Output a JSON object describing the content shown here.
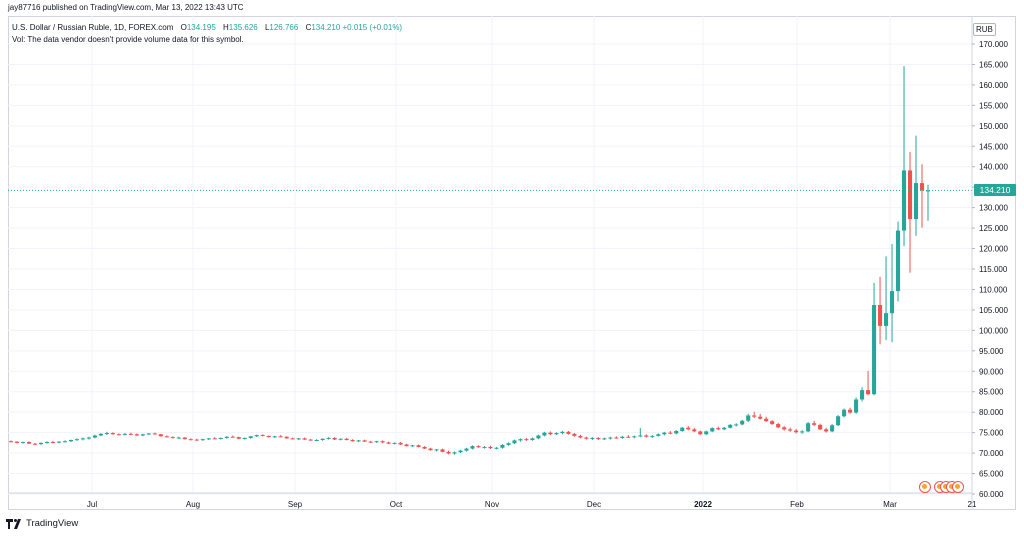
{
  "publish_line": "jay87716 published on TradingView.com, Mar 13, 2022 13:43 UTC",
  "symbol": {
    "name": "U.S. Dollar / Russian Ruble, 1D, FOREX.com",
    "o_label": "O",
    "o_value": "134.195",
    "h_label": "H",
    "h_value": "135.626",
    "l_label": "L",
    "l_value": "126.766",
    "c_label": "C",
    "c_value": "134.210",
    "change": "+0.015 (+0.01%)"
  },
  "vol_line": "Vol: The data vendor doesn't provide volume data for this symbol.",
  "currency": "RUB",
  "last_price_label": "134.210",
  "logo_text": "TradingView",
  "colors": {
    "up": "#26a69a",
    "down": "#ef5350",
    "grid": "#f0f3fa",
    "price_line": "#26a69a"
  },
  "chart_data": {
    "type": "candlestick",
    "ylim": [
      60,
      172
    ],
    "y_ticks": [
      "60.000",
      "65.000",
      "70.000",
      "75.000",
      "80.000",
      "85.000",
      "90.000",
      "95.000",
      "100.000",
      "105.000",
      "110.000",
      "115.000",
      "120.000",
      "125.000",
      "130.000",
      "135.000",
      "140.000",
      "145.000",
      "150.000",
      "155.000",
      "160.000",
      "165.000",
      "170.000"
    ],
    "x_ticks": [
      "Jul",
      "Aug",
      "Sep",
      "Oct",
      "Nov",
      "Dec",
      "2022",
      "Feb",
      "Mar",
      "21"
    ],
    "last_price": 134.21,
    "candles": [
      [
        72.9,
        73.1,
        72.6,
        72.8
      ],
      [
        72.8,
        72.9,
        72.4,
        72.5
      ],
      [
        72.5,
        72.8,
        72.3,
        72.7
      ],
      [
        72.7,
        72.9,
        72.2,
        72.3
      ],
      [
        72.3,
        72.5,
        72.0,
        72.2
      ],
      [
        72.2,
        72.6,
        72.0,
        72.5
      ],
      [
        72.5,
        72.9,
        72.3,
        72.7
      ],
      [
        72.7,
        73.0,
        72.4,
        72.6
      ],
      [
        72.6,
        72.9,
        72.4,
        72.8
      ],
      [
        72.8,
        73.1,
        72.6,
        72.9
      ],
      [
        72.9,
        73.3,
        72.7,
        73.2
      ],
      [
        73.2,
        73.6,
        73.0,
        73.4
      ],
      [
        73.4,
        73.8,
        73.1,
        73.6
      ],
      [
        73.6,
        74.0,
        73.3,
        73.8
      ],
      [
        73.8,
        74.5,
        73.6,
        74.3
      ],
      [
        74.3,
        74.9,
        74.1,
        74.7
      ],
      [
        74.7,
        75.2,
        74.4,
        74.9
      ],
      [
        74.9,
        75.1,
        74.5,
        74.6
      ],
      [
        74.6,
        74.8,
        74.3,
        74.5
      ],
      [
        74.5,
        74.9,
        74.3,
        74.7
      ],
      [
        74.7,
        75.0,
        74.4,
        74.6
      ],
      [
        74.6,
        74.8,
        74.2,
        74.3
      ],
      [
        74.3,
        74.7,
        74.1,
        74.6
      ],
      [
        74.6,
        74.9,
        74.4,
        74.8
      ],
      [
        74.8,
        75.0,
        74.5,
        74.6
      ],
      [
        74.6,
        74.7,
        74.0,
        74.1
      ],
      [
        74.1,
        74.3,
        73.8,
        73.9
      ],
      [
        73.9,
        74.1,
        73.6,
        73.7
      ],
      [
        73.7,
        74.0,
        73.5,
        73.8
      ],
      [
        73.8,
        73.9,
        73.3,
        73.4
      ],
      [
        73.4,
        73.6,
        73.1,
        73.3
      ],
      [
        73.3,
        73.5,
        73.0,
        73.2
      ],
      [
        73.2,
        73.5,
        73.0,
        73.4
      ],
      [
        73.4,
        73.7,
        73.2,
        73.6
      ],
      [
        73.6,
        73.9,
        73.4,
        73.5
      ],
      [
        73.5,
        73.8,
        73.3,
        73.7
      ],
      [
        73.7,
        74.1,
        73.5,
        74.0
      ],
      [
        74.0,
        74.3,
        73.8,
        73.9
      ],
      [
        73.9,
        74.0,
        73.4,
        73.5
      ],
      [
        73.5,
        73.8,
        73.3,
        73.7
      ],
      [
        73.7,
        74.2,
        73.5,
        74.1
      ],
      [
        74.1,
        74.5,
        73.9,
        74.4
      ],
      [
        74.4,
        74.6,
        74.1,
        74.2
      ],
      [
        74.2,
        74.3,
        73.8,
        73.9
      ],
      [
        73.9,
        74.2,
        73.7,
        74.1
      ],
      [
        74.1,
        74.4,
        73.9,
        74.0
      ],
      [
        74.0,
        74.1,
        73.5,
        73.6
      ],
      [
        73.6,
        73.8,
        73.3,
        73.4
      ],
      [
        73.4,
        73.7,
        73.2,
        73.6
      ],
      [
        73.6,
        73.8,
        73.2,
        73.3
      ],
      [
        73.3,
        73.5,
        73.0,
        73.1
      ],
      [
        73.1,
        73.4,
        72.9,
        73.2
      ],
      [
        73.2,
        73.6,
        73.0,
        73.5
      ],
      [
        73.5,
        73.9,
        73.3,
        73.7
      ],
      [
        73.7,
        73.9,
        73.2,
        73.3
      ],
      [
        73.3,
        73.6,
        73.1,
        73.5
      ],
      [
        73.5,
        73.7,
        73.1,
        73.2
      ],
      [
        73.2,
        73.4,
        72.8,
        72.9
      ],
      [
        72.9,
        73.2,
        72.7,
        73.1
      ],
      [
        73.1,
        73.3,
        72.7,
        72.8
      ],
      [
        72.8,
        73.0,
        72.5,
        72.7
      ],
      [
        72.7,
        73.0,
        72.5,
        72.9
      ],
      [
        72.9,
        73.1,
        72.4,
        72.6
      ],
      [
        72.6,
        72.8,
        72.2,
        72.3
      ],
      [
        72.3,
        72.6,
        72.1,
        72.5
      ],
      [
        72.5,
        72.7,
        72.0,
        72.1
      ],
      [
        72.1,
        72.3,
        71.6,
        71.7
      ],
      [
        71.7,
        72.0,
        71.5,
        71.9
      ],
      [
        71.9,
        72.1,
        71.4,
        71.5
      ],
      [
        71.5,
        71.7,
        71.0,
        71.1
      ],
      [
        71.1,
        71.3,
        70.6,
        70.7
      ],
      [
        70.7,
        71.0,
        70.4,
        70.9
      ],
      [
        70.9,
        71.1,
        70.2,
        70.3
      ],
      [
        70.3,
        70.6,
        69.7,
        69.9
      ],
      [
        69.9,
        70.4,
        69.6,
        70.2
      ],
      [
        70.2,
        70.8,
        70.0,
        70.6
      ],
      [
        70.6,
        71.3,
        70.4,
        71.1
      ],
      [
        71.1,
        71.9,
        70.9,
        71.7
      ],
      [
        71.7,
        71.9,
        71.3,
        71.4
      ],
      [
        71.4,
        71.7,
        71.1,
        71.5
      ],
      [
        71.5,
        71.8,
        71.0,
        71.2
      ],
      [
        71.2,
        71.5,
        70.9,
        71.3
      ],
      [
        71.3,
        72.2,
        71.1,
        72.0
      ],
      [
        72.0,
        72.6,
        71.8,
        72.4
      ],
      [
        72.4,
        73.3,
        72.2,
        73.1
      ],
      [
        73.1,
        73.6,
        72.8,
        73.4
      ],
      [
        73.4,
        73.7,
        73.0,
        73.2
      ],
      [
        73.2,
        73.8,
        73.0,
        73.6
      ],
      [
        73.6,
        74.5,
        73.4,
        74.3
      ],
      [
        74.3,
        75.2,
        74.1,
        75.0
      ],
      [
        75.0,
        75.3,
        74.4,
        74.6
      ],
      [
        74.6,
        75.1,
        74.4,
        74.9
      ],
      [
        74.9,
        75.4,
        74.6,
        75.2
      ],
      [
        75.2,
        75.4,
        74.5,
        74.7
      ],
      [
        74.7,
        74.9,
        74.0,
        74.2
      ],
      [
        74.2,
        74.5,
        73.6,
        73.8
      ],
      [
        73.8,
        74.0,
        73.3,
        73.5
      ],
      [
        73.5,
        73.9,
        73.2,
        73.7
      ],
      [
        73.7,
        73.9,
        73.2,
        73.4
      ],
      [
        73.4,
        73.8,
        73.2,
        73.6
      ],
      [
        73.6,
        74.0,
        73.3,
        73.8
      ],
      [
        73.8,
        74.1,
        73.5,
        73.7
      ],
      [
        73.7,
        74.2,
        73.5,
        74.0
      ],
      [
        74.0,
        74.4,
        73.7,
        73.9
      ],
      [
        73.9,
        74.3,
        73.6,
        74.1
      ],
      [
        74.1,
        76.1,
        73.9,
        74.3
      ],
      [
        74.3,
        74.6,
        73.8,
        74.0
      ],
      [
        74.0,
        74.4,
        73.7,
        74.2
      ],
      [
        74.2,
        74.8,
        74.0,
        74.6
      ],
      [
        74.6,
        75.2,
        74.3,
        75.0
      ],
      [
        75.0,
        75.4,
        74.6,
        74.8
      ],
      [
        74.8,
        75.6,
        74.6,
        75.4
      ],
      [
        75.4,
        76.4,
        75.2,
        76.2
      ],
      [
        76.2,
        76.6,
        75.6,
        75.8
      ],
      [
        75.8,
        76.2,
        75.1,
        75.3
      ],
      [
        75.3,
        75.5,
        74.4,
        74.6
      ],
      [
        74.6,
        75.5,
        74.4,
        75.3
      ],
      [
        75.3,
        76.3,
        75.1,
        76.1
      ],
      [
        76.1,
        76.5,
        75.6,
        75.8
      ],
      [
        75.8,
        76.4,
        75.6,
        76.2
      ],
      [
        76.2,
        77.1,
        76.0,
        76.9
      ],
      [
        76.9,
        77.3,
        76.5,
        77.0
      ],
      [
        77.0,
        78.1,
        76.8,
        77.9
      ],
      [
        77.9,
        79.6,
        77.6,
        79.2
      ],
      [
        79.2,
        80.1,
        78.6,
        78.9
      ],
      [
        78.9,
        79.6,
        78.2,
        78.4
      ],
      [
        78.4,
        78.9,
        77.6,
        77.8
      ],
      [
        77.8,
        78.1,
        76.9,
        77.1
      ],
      [
        77.1,
        77.4,
        76.1,
        76.3
      ],
      [
        76.3,
        76.6,
        75.5,
        75.8
      ],
      [
        75.8,
        76.2,
        75.2,
        75.5
      ],
      [
        75.5,
        75.9,
        74.8,
        75.1
      ],
      [
        75.1,
        75.6,
        74.7,
        75.3
      ],
      [
        75.3,
        77.6,
        75.1,
        77.3
      ],
      [
        77.3,
        77.9,
        76.6,
        76.9
      ],
      [
        76.9,
        77.2,
        75.6,
        75.8
      ],
      [
        75.8,
        76.2,
        75.0,
        75.3
      ],
      [
        75.3,
        77.1,
        75.1,
        76.8
      ],
      [
        76.8,
        79.3,
        76.6,
        79.0
      ],
      [
        79.0,
        80.9,
        78.7,
        80.6
      ],
      [
        80.6,
        81.1,
        79.6,
        79.9
      ],
      [
        79.9,
        83.6,
        79.6,
        83.1
      ],
      [
        83.1,
        86.1,
        82.6,
        85.4
      ],
      [
        85.4,
        90.1,
        84.1,
        84.4
      ],
      [
        84.4,
        111.6,
        84.1,
        106.2
      ],
      [
        106.2,
        113.1,
        96.6,
        101.1
      ],
      [
        101.1,
        118.1,
        97.6,
        104.2
      ],
      [
        104.2,
        121.1,
        97.1,
        109.6
      ],
      [
        109.6,
        126.6,
        107.1,
        124.4
      ],
      [
        124.4,
        164.6,
        120.6,
        139.1
      ],
      [
        139.1,
        143.6,
        114.1,
        127.2
      ],
      [
        127.2,
        147.6,
        123.1,
        136.0
      ],
      [
        136.0,
        140.6,
        125.1,
        134.195
      ],
      [
        134.195,
        135.626,
        126.766,
        134.21
      ]
    ]
  }
}
